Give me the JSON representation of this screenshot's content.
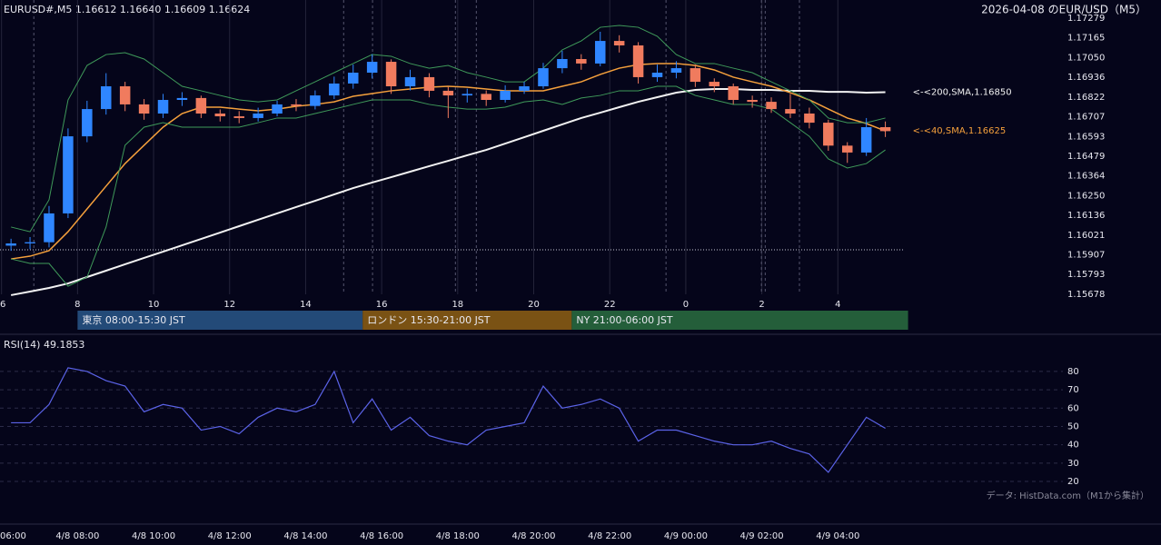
{
  "header": "EURUSD#,M5 1.16612 1.16640 1.16609 1.16624",
  "title": "2026-04-08 のEUR/USD（M5）",
  "source": "データ: HistData.com（M1から集計）",
  "sessions": [
    {
      "label": "東京 08:00-15:30 JST",
      "start": 8,
      "end": 15.5,
      "color": "#234a78"
    },
    {
      "label": "ロンドン 15:30-21:00 JST",
      "start": 15.5,
      "end": 21,
      "color": "#7a5214"
    },
    {
      "label": "NY 21:00-06:00 JST",
      "start": 21,
      "end": 30,
      "color": "#245e3a"
    }
  ],
  "chart_data": [
    {
      "type": "candlestick",
      "up_color": "#2f86ff",
      "down_color": "#f07b5e",
      "x": [
        6.25,
        6.75,
        7.25,
        7.75,
        8.25,
        8.75,
        9.25,
        9.75,
        10.25,
        10.75,
        11.25,
        11.75,
        12.25,
        12.75,
        13.25,
        13.75,
        14.25,
        14.75,
        15.25,
        15.75,
        16.25,
        16.75,
        17.25,
        17.75,
        18.25,
        18.75,
        19.25,
        19.75,
        20.25,
        20.75,
        21.25,
        21.75,
        22.25,
        22.75,
        23.25,
        23.75,
        24.25,
        24.75,
        25.25,
        25.75,
        26.25,
        26.75,
        27.25,
        27.75,
        28.25,
        28.75,
        29.25
      ],
      "open": [
        1.1596,
        1.15973,
        1.1598,
        1.16147,
        1.16594,
        1.16752,
        1.16884,
        1.16779,
        1.16726,
        1.16805,
        1.16816,
        1.16726,
        1.1671,
        1.167,
        1.16726,
        1.16779,
        1.1677,
        1.16831,
        1.169,
        1.16963,
        1.17026,
        1.16884,
        1.16937,
        1.16858,
        1.16831,
        1.1684,
        1.16805,
        1.16858,
        1.16884,
        1.16989,
        1.17042,
        1.17016,
        1.17147,
        1.17121,
        1.16937,
        1.16963,
        1.16989,
        1.1691,
        1.16884,
        1.16805,
        1.16794,
        1.16752,
        1.16726,
        1.16673,
        1.1654,
        1.165,
        1.16647
      ],
      "high": [
        1.16,
        1.1601,
        1.1619,
        1.1664,
        1.168,
        1.1696,
        1.1691,
        1.1681,
        1.1684,
        1.1685,
        1.1683,
        1.1675,
        1.1674,
        1.1676,
        1.168,
        1.1681,
        1.1686,
        1.1694,
        1.1701,
        1.1707,
        1.1704,
        1.1698,
        1.1696,
        1.1688,
        1.1687,
        1.1686,
        1.1689,
        1.1691,
        1.1702,
        1.1709,
        1.1707,
        1.172,
        1.1718,
        1.1714,
        1.1701,
        1.1703,
        1.1701,
        1.1693,
        1.169,
        1.1683,
        1.1682,
        1.1684,
        1.1676,
        1.1669,
        1.1656,
        1.167,
        1.1668
      ],
      "low": [
        1.1593,
        1.1594,
        1.1595,
        1.1612,
        1.1656,
        1.1672,
        1.1674,
        1.1669,
        1.167,
        1.1677,
        1.167,
        1.1668,
        1.1667,
        1.1668,
        1.1671,
        1.1674,
        1.1675,
        1.1681,
        1.1687,
        1.1693,
        1.1684,
        1.1686,
        1.1682,
        1.167,
        1.1679,
        1.1677,
        1.1679,
        1.1684,
        1.1687,
        1.1696,
        1.1698,
        1.17,
        1.1708,
        1.169,
        1.1691,
        1.1693,
        1.1688,
        1.1685,
        1.1678,
        1.1676,
        1.1673,
        1.167,
        1.1664,
        1.1651,
        1.1644,
        1.1648,
        1.1659
      ],
      "close": [
        1.15973,
        1.1598,
        1.16147,
        1.16594,
        1.16752,
        1.16884,
        1.16779,
        1.16726,
        1.16805,
        1.16816,
        1.16726,
        1.1671,
        1.167,
        1.16726,
        1.16779,
        1.1677,
        1.16831,
        1.169,
        1.16963,
        1.17026,
        1.16884,
        1.16937,
        1.16858,
        1.16831,
        1.1684,
        1.16805,
        1.16858,
        1.16884,
        1.16989,
        1.17042,
        1.17016,
        1.17147,
        1.17121,
        1.16937,
        1.16963,
        1.16989,
        1.1691,
        1.16884,
        1.16805,
        1.16794,
        1.16752,
        1.16726,
        1.16673,
        1.1654,
        1.165,
        1.16647,
        1.16624
      ],
      "series": [
        {
          "name": "<-<200,SMA,1.16850",
          "color": "#f2f2f2",
          "width": 2,
          "values": [
            1.15673,
            1.15694,
            1.15715,
            1.15741,
            1.15778,
            1.15815,
            1.15852,
            1.15889,
            1.15925,
            1.15962,
            1.15999,
            1.16036,
            1.16073,
            1.1611,
            1.16147,
            1.16184,
            1.1622,
            1.16257,
            1.16294,
            1.16326,
            1.16357,
            1.16389,
            1.16421,
            1.16452,
            1.16484,
            1.16515,
            1.16552,
            1.16589,
            1.16626,
            1.16663,
            1.167,
            1.16731,
            1.16763,
            1.16794,
            1.16821,
            1.16847,
            1.16863,
            1.16868,
            1.16868,
            1.16863,
            1.16863,
            1.16858,
            1.16858,
            1.16852,
            1.16852,
            1.16847,
            1.1685
          ]
        },
        {
          "name": "<-<40,SMA,1.16625",
          "color": "#f5a03c",
          "width": 1.5,
          "values": [
            1.15883,
            1.15899,
            1.15931,
            1.16041,
            1.16173,
            1.16305,
            1.16436,
            1.16542,
            1.16647,
            1.16726,
            1.16763,
            1.16763,
            1.16752,
            1.16742,
            1.16752,
            1.16768,
            1.16779,
            1.16794,
            1.16826,
            1.16842,
            1.16858,
            1.16868,
            1.16879,
            1.16884,
            1.16879,
            1.16868,
            1.16858,
            1.16858,
            1.16858,
            1.16884,
            1.1691,
            1.16953,
            1.16989,
            1.1701,
            1.17016,
            1.17016,
            1.17005,
            1.16979,
            1.16937,
            1.1691,
            1.16884,
            1.16847,
            1.16805,
            1.16752,
            1.167,
            1.16668,
            1.16625
          ]
        },
        {
          "color": "#3f9a5a",
          "width": 1,
          "values": [
            1.16068,
            1.16041,
            1.16226,
            1.16805,
            1.17005,
            1.17068,
            1.17079,
            1.17042,
            1.16963,
            1.16884,
            1.16858,
            1.16831,
            1.16805,
            1.16794,
            1.16805,
            1.16858,
            1.1691,
            1.16963,
            1.17016,
            1.17068,
            1.17058,
            1.17016,
            1.16989,
            1.17005,
            1.16963,
            1.16937,
            1.1691,
            1.1691,
            1.16989,
            1.17095,
            1.17147,
            1.17226,
            1.17237,
            1.17226,
            1.17174,
            1.17068,
            1.17016,
            1.17016,
            1.16989,
            1.16963,
            1.1691,
            1.16858,
            1.16805,
            1.167,
            1.16673,
            1.16673,
            1.167
          ]
        },
        {
          "color": "#3f9a5a",
          "width": 1,
          "values": [
            1.15883,
            1.15857,
            1.15857,
            1.15725,
            1.15778,
            1.16068,
            1.16542,
            1.16647,
            1.16673,
            1.16647,
            1.16647,
            1.16647,
            1.16647,
            1.16673,
            1.167,
            1.167,
            1.16726,
            1.16752,
            1.16779,
            1.16805,
            1.16805,
            1.16805,
            1.16779,
            1.16763,
            1.16752,
            1.16752,
            1.16763,
            1.16794,
            1.16805,
            1.16779,
            1.16816,
            1.16831,
            1.16858,
            1.16858,
            1.16884,
            1.16884,
            1.16831,
            1.16805,
            1.16779,
            1.16779,
            1.16752,
            1.16673,
            1.16594,
            1.16463,
            1.1641,
            1.16436,
            1.16515
          ]
        }
      ],
      "xlim": [
        5.96,
        33.92
      ],
      "xticks": [
        6,
        8,
        10,
        12,
        14,
        16,
        18,
        20,
        22,
        {
          "value": 24,
          "label": "0"
        },
        {
          "value": 26,
          "label": "2"
        },
        {
          "value": 28,
          "label": "4"
        }
      ],
      "ylim": [
        1.15678,
        1.17279
      ],
      "yticks": [
        1.17279,
        1.17165,
        {
          "value": 1.1705,
          "label": "1.17050"
        },
        1.16936,
        1.16822,
        1.16707,
        1.16593,
        1.16479,
        1.16364,
        {
          "value": 1.1625,
          "label": "1.16250"
        },
        1.16136,
        1.16021,
        1.15907,
        1.15793,
        1.15678
      ],
      "grid": "x",
      "hline": 1.15936,
      "event_lines": [
        6.85,
        15.0,
        15.76,
        17.94,
        18.49,
        23.48,
        25.99,
        26.09,
        26.99
      ]
    },
    {
      "type": "line",
      "title": "RSI(14) 49.1853",
      "x": [
        6.25,
        6.75,
        7.25,
        7.75,
        8.25,
        8.75,
        9.25,
        9.75,
        10.25,
        10.75,
        11.25,
        11.75,
        12.25,
        12.75,
        13.25,
        13.75,
        14.25,
        14.75,
        15.25,
        15.75,
        16.25,
        16.75,
        17.25,
        17.75,
        18.25,
        18.75,
        19.25,
        19.75,
        20.25,
        20.75,
        21.25,
        21.75,
        22.25,
        22.75,
        23.25,
        23.75,
        24.25,
        24.75,
        25.25,
        25.75,
        26.25,
        26.75,
        27.25,
        27.75,
        28.25,
        28.75,
        29.25
      ],
      "series": [
        {
          "color": "#5b63e8",
          "values": [
            52,
            52,
            62,
            82,
            80,
            75,
            72,
            58,
            62,
            60,
            48,
            50,
            46,
            55,
            60,
            58,
            62,
            80,
            52,
            65,
            48,
            55,
            45,
            42,
            40,
            48,
            50,
            52,
            72,
            60,
            62,
            65,
            60,
            42,
            48,
            48,
            45,
            42,
            40,
            40,
            42,
            38,
            35,
            25,
            40,
            55,
            49
          ]
        }
      ],
      "xlim": [
        5.96,
        33.92
      ],
      "xticks": [
        {
          "value": 6,
          "label": "06:00"
        },
        {
          "value": 8,
          "label": "4/8 08:00"
        },
        {
          "value": 10,
          "label": "4/8 10:00"
        },
        {
          "value": 12,
          "label": "4/8 12:00"
        },
        {
          "value": 14,
          "label": "4/8 14:00"
        },
        {
          "value": 16,
          "label": "4/8 16:00"
        },
        {
          "value": 18,
          "label": "4/8 18:00"
        },
        {
          "value": 20,
          "label": "4/8 20:00"
        },
        {
          "value": 22,
          "label": "4/8 22:00"
        },
        {
          "value": 24,
          "label": "4/9 00:00"
        },
        {
          "value": 26,
          "label": "4/9 02:00"
        },
        {
          "value": 28,
          "label": "4/9 04:00"
        }
      ],
      "ylim": [
        12.6,
        86.9
      ],
      "yticks": [
        20,
        30,
        40,
        50,
        60,
        70,
        80
      ],
      "grid": "y"
    }
  ]
}
